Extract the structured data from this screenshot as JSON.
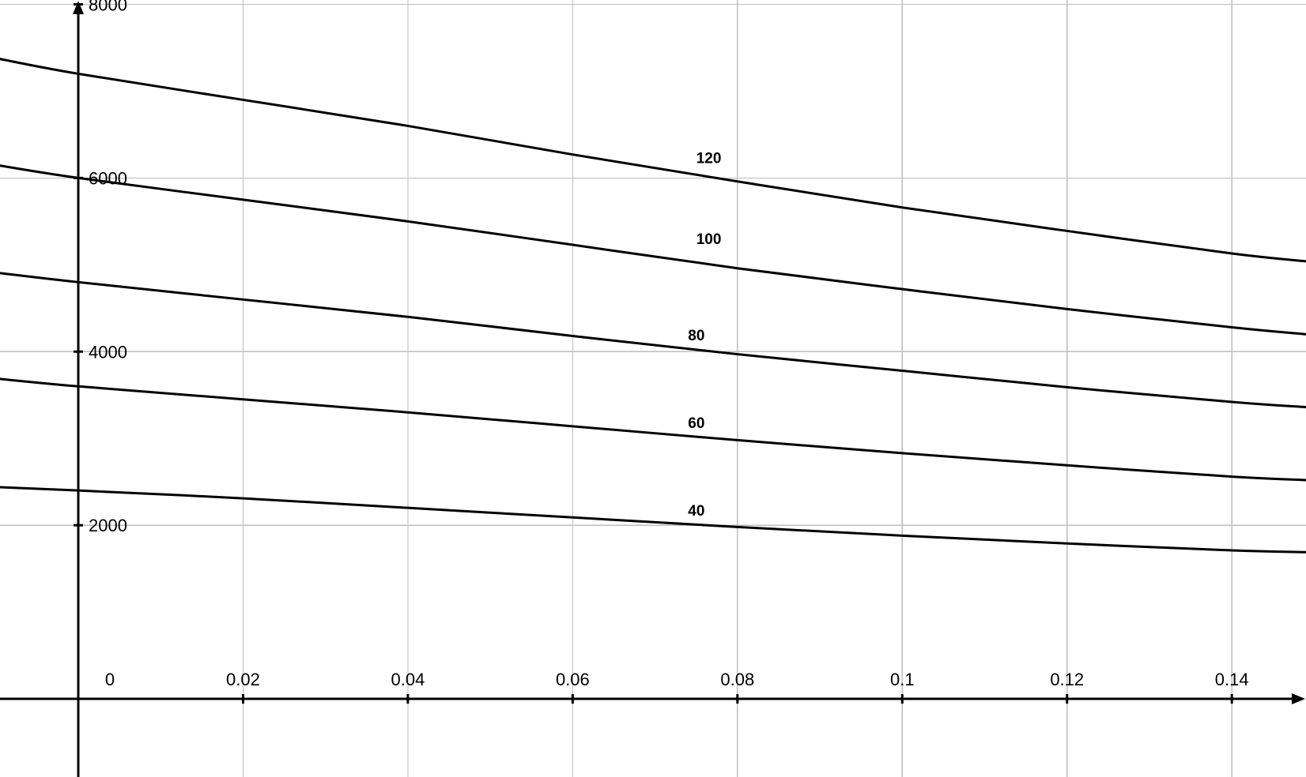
{
  "chart_data": {
    "type": "line",
    "title": "",
    "xlabel": "",
    "ylabel": "",
    "xlim": [
      -0.0095,
      0.149
    ],
    "ylim": [
      -900,
      8050
    ],
    "x_ticks": [
      0,
      0.02,
      0.04,
      0.06,
      0.08,
      0.1,
      0.12,
      0.14
    ],
    "x_tick_labels": [
      "0",
      "0.02",
      "0.04",
      "0.06",
      "0.08",
      "0.1",
      "0.12",
      "0.14"
    ],
    "y_ticks": [
      2000,
      4000,
      6000,
      8000
    ],
    "y_tick_labels": [
      "2000",
      "4000",
      "6000",
      "8000"
    ],
    "grid": true,
    "x": [
      -0.01,
      0,
      0.02,
      0.04,
      0.06,
      0.08,
      0.1,
      0.12,
      0.14,
      0.149
    ],
    "series": [
      {
        "name": "40",
        "label_at": [
          0.074,
          2110
        ],
        "values": [
          2440,
          2400,
          2310,
          2200,
          2090,
          1980,
          1880,
          1790,
          1710,
          1690
        ]
      },
      {
        "name": "60",
        "label_at": [
          0.074,
          3120
        ],
        "values": [
          3690,
          3600,
          3450,
          3300,
          3140,
          2980,
          2830,
          2690,
          2560,
          2520
        ]
      },
      {
        "name": "80",
        "label_at": [
          0.074,
          4130
        ],
        "values": [
          4910,
          4800,
          4600,
          4400,
          4180,
          3970,
          3780,
          3590,
          3420,
          3360
        ]
      },
      {
        "name": "100",
        "label_at": [
          0.075,
          5240
        ],
        "values": [
          6150,
          6000,
          5750,
          5500,
          5230,
          4960,
          4720,
          4490,
          4280,
          4200
        ]
      },
      {
        "name": "120",
        "label_at": [
          0.075,
          6170
        ],
        "values": [
          7380,
          7200,
          6900,
          6600,
          6270,
          5960,
          5660,
          5390,
          5130,
          5040
        ]
      }
    ]
  }
}
